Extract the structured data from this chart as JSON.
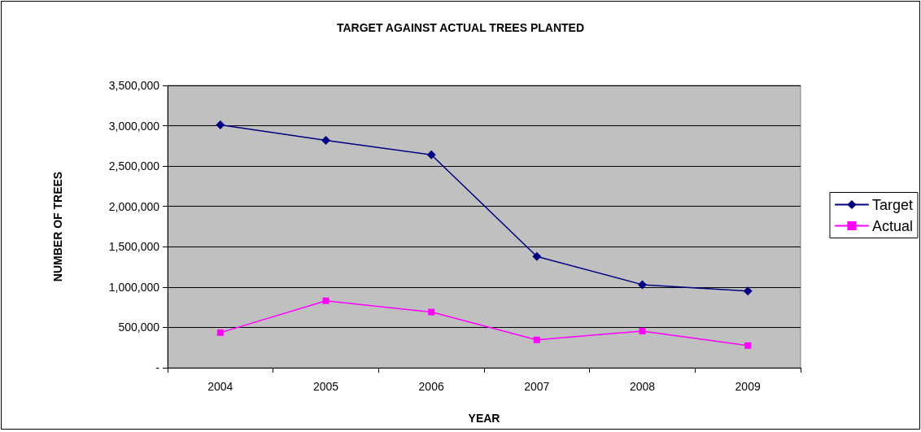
{
  "chart_data": {
    "type": "line",
    "title": "TARGET AGAINST ACTUAL TREES PLANTED",
    "xlabel": "YEAR",
    "ylabel": "NUMBER OF TREES",
    "categories": [
      "2004",
      "2005",
      "2006",
      "2007",
      "2008",
      "2009"
    ],
    "series": [
      {
        "name": "Target",
        "color": "#000080",
        "marker": "diamond",
        "values": [
          3010000,
          2820000,
          2640000,
          1380000,
          1030000,
          950000
        ]
      },
      {
        "name": "Actual",
        "color": "#ff00ff",
        "marker": "square",
        "values": [
          435000,
          830000,
          690000,
          345000,
          455000,
          275000
        ]
      }
    ],
    "ylim": [
      0,
      3500000
    ],
    "yticks": [
      {
        "value": 0,
        "label": "-"
      },
      {
        "value": 500000,
        "label": "500,000"
      },
      {
        "value": 1000000,
        "label": "1,000,000"
      },
      {
        "value": 1500000,
        "label": "1,500,000"
      },
      {
        "value": 2000000,
        "label": "2,000,000"
      },
      {
        "value": 2500000,
        "label": "2,500,000"
      },
      {
        "value": 3000000,
        "label": "3,000,000"
      },
      {
        "value": 3500000,
        "label": "3,500,000"
      }
    ],
    "grid": "y",
    "legend": "right",
    "line_style": "solid"
  }
}
